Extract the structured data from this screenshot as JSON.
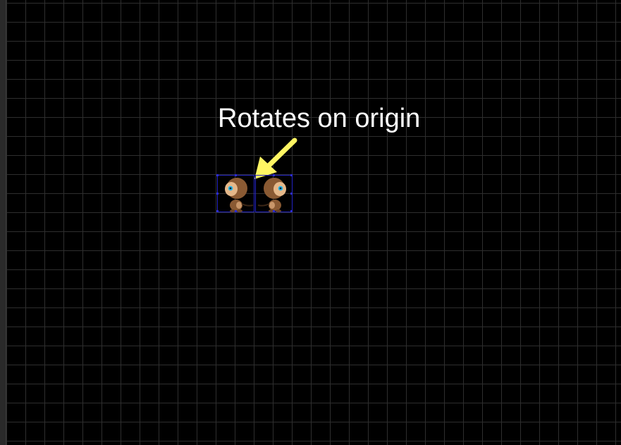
{
  "canvas": {
    "annotation": {
      "label": "Rotates on origin",
      "arrow_color": "#fff563"
    },
    "sprites": [
      {
        "name": "character-sprite-left",
        "facing": "right"
      },
      {
        "name": "character-sprite-right",
        "facing": "left"
      }
    ],
    "colors": {
      "background": "#000000",
      "grid_line": "#2e2e2e",
      "selection": "#2323c4",
      "text": "#ffffff"
    }
  }
}
